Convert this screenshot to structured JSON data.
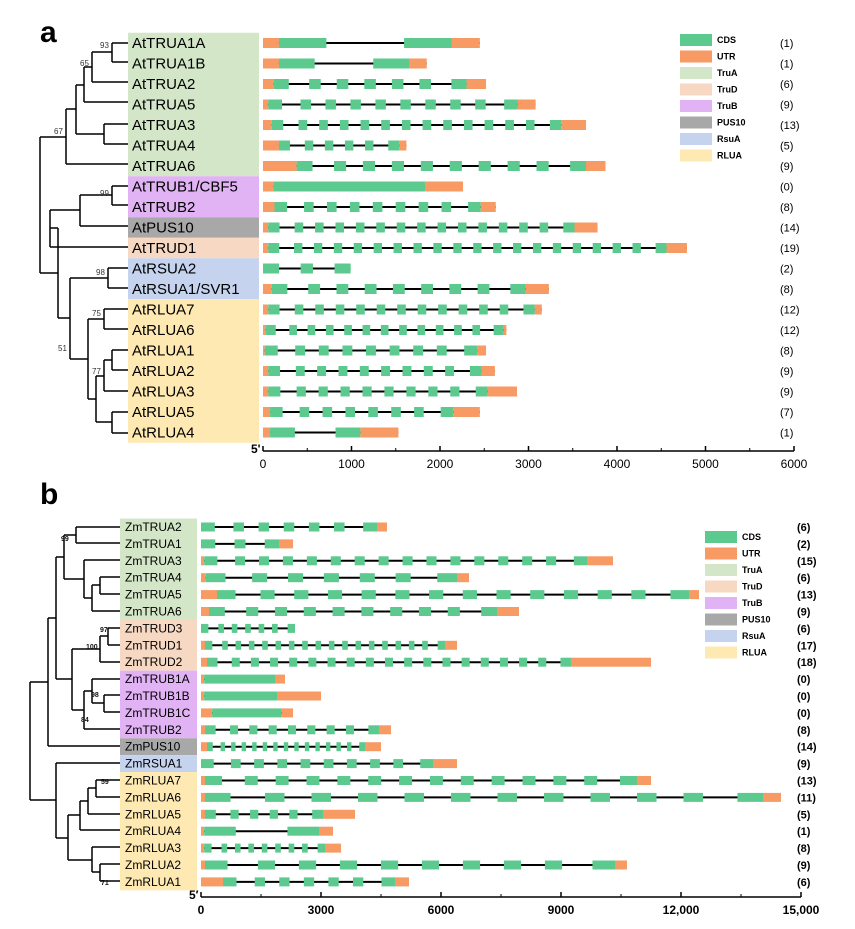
{
  "colors": {
    "cds": "#5cc98f",
    "utr": "#f79a63",
    "TruA": "#d3e6c8",
    "TruD": "#f6d8c3",
    "TruB": "#e1b2f4",
    "PUS10": "#a8a8a8",
    "RsuA": "#c5d3ee",
    "RLUA": "#fde9b1"
  },
  "legend": {
    "items": [
      {
        "label": "CDS",
        "color": "cds"
      },
      {
        "label": "UTR",
        "color": "utr"
      },
      {
        "label": "TruA",
        "color": "TruA"
      },
      {
        "label": "TruD",
        "color": "TruD"
      },
      {
        "label": "TruB",
        "color": "TruB"
      },
      {
        "label": "PUS10",
        "color": "PUS10"
      },
      {
        "label": "RsuA",
        "color": "RsuA"
      },
      {
        "label": "RLUA",
        "color": "RLUA"
      }
    ]
  },
  "panels": [
    {
      "letter": "a",
      "five_prime": "5'",
      "axis_max": 6000,
      "ticks": [
        {
          "value": 0,
          "label": "0"
        },
        {
          "value": 1000,
          "label": "1000"
        },
        {
          "value": 2000,
          "label": "2000"
        },
        {
          "value": 3000,
          "label": "3000"
        },
        {
          "value": 4000,
          "label": "4000"
        },
        {
          "value": 5000,
          "label": "5000"
        },
        {
          "value": 6000,
          "label": "6000"
        }
      ],
      "bootstraps": [
        "93",
        "65",
        "67",
        "99",
        "98",
        "75",
        "51",
        "77"
      ],
      "genes": [
        {
          "name": "AtTRUA1A",
          "family": "TruA",
          "introns": "(1)",
          "len": 2450,
          "utr5": 180,
          "utr3": 320,
          "exons": 2
        },
        {
          "name": "AtTRUA1B",
          "family": "TruA",
          "introns": "(1)",
          "len": 1850,
          "utr5": 180,
          "utr3": 200,
          "exons": 2
        },
        {
          "name": "AtTRUA2",
          "family": "TruA",
          "introns": "(6)",
          "len": 2520,
          "utr5": 120,
          "utr3": 220,
          "exons": 7
        },
        {
          "name": "AtTRUA5",
          "family": "TruA",
          "introns": "(9)",
          "len": 3080,
          "utr5": 60,
          "utr3": 200,
          "exons": 10
        },
        {
          "name": "AtTRUA3",
          "family": "TruA",
          "introns": "(13)",
          "len": 3650,
          "utr5": 100,
          "utr3": 280,
          "exons": 14
        },
        {
          "name": "AtTRUA4",
          "family": "TruA",
          "introns": "(5)",
          "len": 1620,
          "utr5": 180,
          "utr3": 80,
          "exons": 6
        },
        {
          "name": "AtTRUA6",
          "family": "TruA",
          "introns": "(9)",
          "len": 3870,
          "utr5": 380,
          "utr3": 220,
          "exons": 10
        },
        {
          "name": "AtTRUB1/CBF5",
          "family": "TruB",
          "introns": "(0)",
          "len": 2260,
          "utr5": 120,
          "utr3": 430,
          "exons": 1
        },
        {
          "name": "AtTRUB2",
          "family": "TruB",
          "introns": "(8)",
          "len": 2630,
          "utr5": 130,
          "utr3": 170,
          "exons": 9
        },
        {
          "name": "AtPUS10",
          "family": "PUS10",
          "introns": "(14)",
          "len": 3780,
          "utr5": 60,
          "utr3": 260,
          "exons": 15
        },
        {
          "name": "AtTRUD1",
          "family": "TruD",
          "introns": "(19)",
          "len": 4790,
          "utr5": 60,
          "utr3": 230,
          "exons": 20
        },
        {
          "name": "AtRSUA2",
          "family": "RsuA",
          "introns": "(2)",
          "len": 990,
          "utr5": 0,
          "utr3": 0,
          "exons": 3
        },
        {
          "name": "AtRSUA1/SVR1",
          "family": "RsuA",
          "introns": "(8)",
          "len": 3230,
          "utr5": 100,
          "utr3": 260,
          "exons": 9
        },
        {
          "name": "AtRLUA7",
          "family": "RLUA",
          "introns": "(12)",
          "len": 3150,
          "utr5": 60,
          "utr3": 80,
          "exons": 13
        },
        {
          "name": "AtRLUA6",
          "family": "RLUA",
          "introns": "(12)",
          "len": 2750,
          "utr5": 30,
          "utr3": 30,
          "exons": 13
        },
        {
          "name": "AtRLUA1",
          "family": "RLUA",
          "introns": "(8)",
          "len": 2520,
          "utr5": 20,
          "utr3": 100,
          "exons": 9
        },
        {
          "name": "AtRLUA2",
          "family": "RLUA",
          "introns": "(9)",
          "len": 2620,
          "utr5": 60,
          "utr3": 150,
          "exons": 10
        },
        {
          "name": "AtRLUA3",
          "family": "RLUA",
          "introns": "(9)",
          "len": 2870,
          "utr5": 60,
          "utr3": 330,
          "exons": 10
        },
        {
          "name": "AtRLUA5",
          "family": "RLUA",
          "introns": "(7)",
          "len": 2450,
          "utr5": 80,
          "utr3": 300,
          "exons": 8
        },
        {
          "name": "AtRLUA4",
          "family": "RLUA",
          "introns": "(1)",
          "len": 1530,
          "utr5": 80,
          "utr3": 430,
          "exons": 2
        }
      ]
    },
    {
      "letter": "b",
      "five_prime": "5′",
      "axis_max": 15000,
      "ticks": [
        {
          "value": 0,
          "label": "0"
        },
        {
          "value": 3000,
          "label": "3000"
        },
        {
          "value": 6000,
          "label": "6000"
        },
        {
          "value": 9000,
          "label": "9000"
        },
        {
          "value": 12000,
          "label": "12,000"
        },
        {
          "value": 15000,
          "label": "15,000"
        }
      ],
      "bootstraps": [
        "99",
        "97",
        "100",
        "98",
        "84",
        "59",
        "71"
      ],
      "genes": [
        {
          "name": "ZmTRUA2",
          "family": "TruA",
          "introns": "(6)",
          "len": 4650,
          "utr5": 0,
          "utr3": 250,
          "exons": 7
        },
        {
          "name": "ZmTRUA1",
          "family": "TruA",
          "introns": "(2)",
          "len": 2300,
          "utr5": 0,
          "utr3": 350,
          "exons": 3
        },
        {
          "name": "ZmTRUA3",
          "family": "TruA",
          "introns": "(15)",
          "len": 10300,
          "utr5": 80,
          "utr3": 650,
          "exons": 16
        },
        {
          "name": "ZmTRUA4",
          "family": "TruA",
          "introns": "(6)",
          "len": 6700,
          "utr5": 120,
          "utr3": 300,
          "exons": 7
        },
        {
          "name": "ZmTRUA5",
          "family": "TruA",
          "introns": "(13)",
          "len": 12450,
          "utr5": 400,
          "utr3": 250,
          "exons": 14
        },
        {
          "name": "ZmTRUA6",
          "family": "TruA",
          "introns": "(9)",
          "len": 7950,
          "utr5": 200,
          "utr3": 550,
          "exons": 10
        },
        {
          "name": "ZmTRUD3",
          "family": "TruD",
          "introns": "(6)",
          "len": 2350,
          "utr5": 0,
          "utr3": 0,
          "exons": 7
        },
        {
          "name": "ZmTRUD1",
          "family": "TruD",
          "introns": "(17)",
          "len": 6400,
          "utr5": 100,
          "utr3": 300,
          "exons": 18
        },
        {
          "name": "ZmTRUD2",
          "family": "TruD",
          "introns": "(18)",
          "len": 11250,
          "utr5": 150,
          "utr3": 2000,
          "exons": 19
        },
        {
          "name": "ZmTRUB1A",
          "family": "TruB",
          "introns": "(0)",
          "len": 2100,
          "utr5": 80,
          "utr3": 250,
          "exons": 1
        },
        {
          "name": "ZmTRUB1B",
          "family": "TruB",
          "introns": "(0)",
          "len": 3000,
          "utr5": 80,
          "utr3": 1100,
          "exons": 1
        },
        {
          "name": "ZmTRUB1C",
          "family": "TruB",
          "introns": "(0)",
          "len": 2300,
          "utr5": 280,
          "utr3": 280,
          "exons": 1
        },
        {
          "name": "ZmTRUB2",
          "family": "TruB",
          "introns": "(8)",
          "len": 4750,
          "utr5": 100,
          "utr3": 300,
          "exons": 9
        },
        {
          "name": "ZmPUS10",
          "family": "PUS10",
          "introns": "(14)",
          "len": 4500,
          "utr5": 150,
          "utr3": 400,
          "exons": 15
        },
        {
          "name": "ZmRSUA1",
          "family": "RsuA",
          "introns": "(9)",
          "len": 6400,
          "utr5": 0,
          "utr3": 600,
          "exons": 10
        },
        {
          "name": "ZmRLUA7",
          "family": "RLUA",
          "introns": "(13)",
          "len": 11250,
          "utr5": 100,
          "utr3": 350,
          "exons": 14
        },
        {
          "name": "ZmRLUA6",
          "family": "RLUA",
          "introns": "(11)",
          "len": 14500,
          "utr5": 100,
          "utr3": 450,
          "exons": 12
        },
        {
          "name": "ZmRLUA5",
          "family": "RLUA",
          "introns": "(5)",
          "len": 3850,
          "utr5": 100,
          "utr3": 800,
          "exons": 6
        },
        {
          "name": "ZmRLUA4",
          "family": "RLUA",
          "introns": "(1)",
          "len": 3300,
          "utr5": 80,
          "utr3": 350,
          "exons": 2
        },
        {
          "name": "ZmRLUA3",
          "family": "RLUA",
          "introns": "(8)",
          "len": 3500,
          "utr5": 80,
          "utr3": 400,
          "exons": 9
        },
        {
          "name": "ZmRLUA2",
          "family": "RLUA",
          "introns": "(9)",
          "len": 10650,
          "utr5": 100,
          "utr3": 300,
          "exons": 10
        },
        {
          "name": "ZmRLUA1",
          "family": "RLUA",
          "introns": "(6)",
          "len": 5200,
          "utr5": 550,
          "utr3": 350,
          "exons": 7
        }
      ]
    }
  ]
}
